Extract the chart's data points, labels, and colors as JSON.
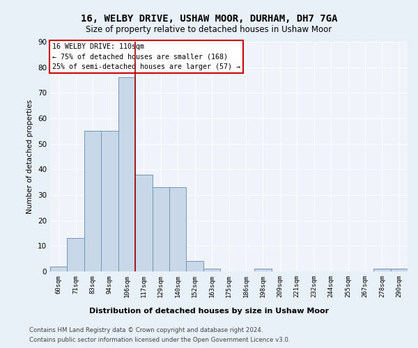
{
  "title1": "16, WELBY DRIVE, USHAW MOOR, DURHAM, DH7 7GA",
  "title2": "Size of property relative to detached houses in Ushaw Moor",
  "xlabel": "Distribution of detached houses by size in Ushaw Moor",
  "ylabel": "Number of detached properties",
  "categories": [
    "60sqm",
    "71sqm",
    "83sqm",
    "94sqm",
    "106sqm",
    "117sqm",
    "129sqm",
    "140sqm",
    "152sqm",
    "163sqm",
    "175sqm",
    "186sqm",
    "198sqm",
    "209sqm",
    "221sqm",
    "232sqm",
    "244sqm",
    "255sqm",
    "267sqm",
    "278sqm",
    "290sqm"
  ],
  "values": [
    2,
    13,
    55,
    55,
    76,
    38,
    33,
    33,
    4,
    1,
    0,
    0,
    1,
    0,
    0,
    0,
    0,
    0,
    0,
    1,
    1
  ],
  "bar_color": "#c8d8e8",
  "bar_edge_color": "#7096b8",
  "vline_x": 4.5,
  "vline_color": "#a00000",
  "annotation_text": "16 WELBY DRIVE: 110sqm\n← 75% of detached houses are smaller (168)\n25% of semi-detached houses are larger (57) →",
  "annotation_box_color": "#ffffff",
  "annotation_box_edge": "#cc0000",
  "ylim": [
    0,
    90
  ],
  "yticks": [
    0,
    10,
    20,
    30,
    40,
    50,
    60,
    70,
    80,
    90
  ],
  "footer1": "Contains HM Land Registry data © Crown copyright and database right 2024.",
  "footer2": "Contains public sector information licensed under the Open Government Licence v3.0.",
  "bg_color": "#e8f0f8",
  "plot_bg_color": "#f0f4fa"
}
